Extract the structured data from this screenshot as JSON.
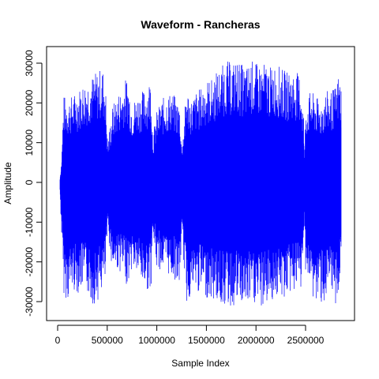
{
  "chart_data": {
    "type": "line",
    "title": "Waveform - Rancheras",
    "xlabel": "Sample Index",
    "ylabel": "Amplitude",
    "xlim": [
      0,
      2860000
    ],
    "ylim": [
      -33000,
      33000
    ],
    "x_ticks": [
      0,
      500000,
      1000000,
      1500000,
      2000000,
      2500000
    ],
    "x_tick_labels": [
      "0",
      "500000",
      "1000000",
      "1500000",
      "2000000",
      "2500000"
    ],
    "y_ticks": [
      -30000,
      -20000,
      -10000,
      0,
      10000,
      20000,
      30000
    ],
    "y_tick_labels": [
      "-30000",
      "-20000",
      "-10000",
      "0",
      "10000",
      "20000",
      "30000"
    ],
    "grid": false,
    "series_color": "#0000ff",
    "envelope": {
      "x": [
        20000,
        40000,
        60000,
        100000,
        150000,
        200000,
        250000,
        300000,
        350000,
        400000,
        450000,
        480000,
        500000,
        510000,
        550000,
        600000,
        650000,
        700000,
        750000,
        800000,
        850000,
        900000,
        940000,
        960000,
        1000000,
        1050000,
        1100000,
        1150000,
        1200000,
        1230000,
        1250000,
        1270000,
        1300000,
        1350000,
        1400000,
        1450000,
        1500000,
        1550000,
        1600000,
        1650000,
        1700000,
        1750000,
        1800000,
        1850000,
        1900000,
        1950000,
        2000000,
        2050000,
        2100000,
        2150000,
        2200000,
        2250000,
        2300000,
        2350000,
        2400000,
        2450000,
        2480000,
        2490000,
        2500000,
        2550000,
        2600000,
        2650000,
        2700000,
        2750000,
        2800000,
        2840000,
        2860000
      ],
      "max": [
        0,
        6000,
        22000,
        21000,
        22000,
        23000,
        25000,
        26000,
        27000,
        28000,
        29000,
        27000,
        12000,
        11000,
        19000,
        22000,
        24000,
        27000,
        20000,
        22000,
        23000,
        24000,
        27000,
        12000,
        18000,
        21000,
        22000,
        23000,
        21000,
        20000,
        10000,
        14000,
        24000,
        21000,
        23000,
        24000,
        26000,
        26000,
        28000,
        29000,
        31000,
        30000,
        31000,
        30000,
        29000,
        31000,
        30000,
        30000,
        30000,
        29000,
        30000,
        29000,
        28000,
        28000,
        28000,
        27000,
        18000,
        6000,
        20000,
        23000,
        22000,
        20000,
        23000,
        23000,
        24000,
        28000,
        24000
      ],
      "min": [
        0,
        -14000,
        -28000,
        -30000,
        -27000,
        -28000,
        -27000,
        -28000,
        -31000,
        -30000,
        -27000,
        -26000,
        -14000,
        -13000,
        -22000,
        -22000,
        -23000,
        -26000,
        -22000,
        -23000,
        -26000,
        -27000,
        -28000,
        -14000,
        -22000,
        -22000,
        -23000,
        -24000,
        -25000,
        -27000,
        -14000,
        -20000,
        -31000,
        -28000,
        -28000,
        -28000,
        -29000,
        -30000,
        -30000,
        -31000,
        -31000,
        -32000,
        -31000,
        -31000,
        -32000,
        -31000,
        -31000,
        -32000,
        -31000,
        -30000,
        -29000,
        -30000,
        -29000,
        -28000,
        -27000,
        -28000,
        -20000,
        -8000,
        -22000,
        -28000,
        -31000,
        -30000,
        -31000,
        -29000,
        -31000,
        -28000,
        -22000
      ]
    }
  }
}
